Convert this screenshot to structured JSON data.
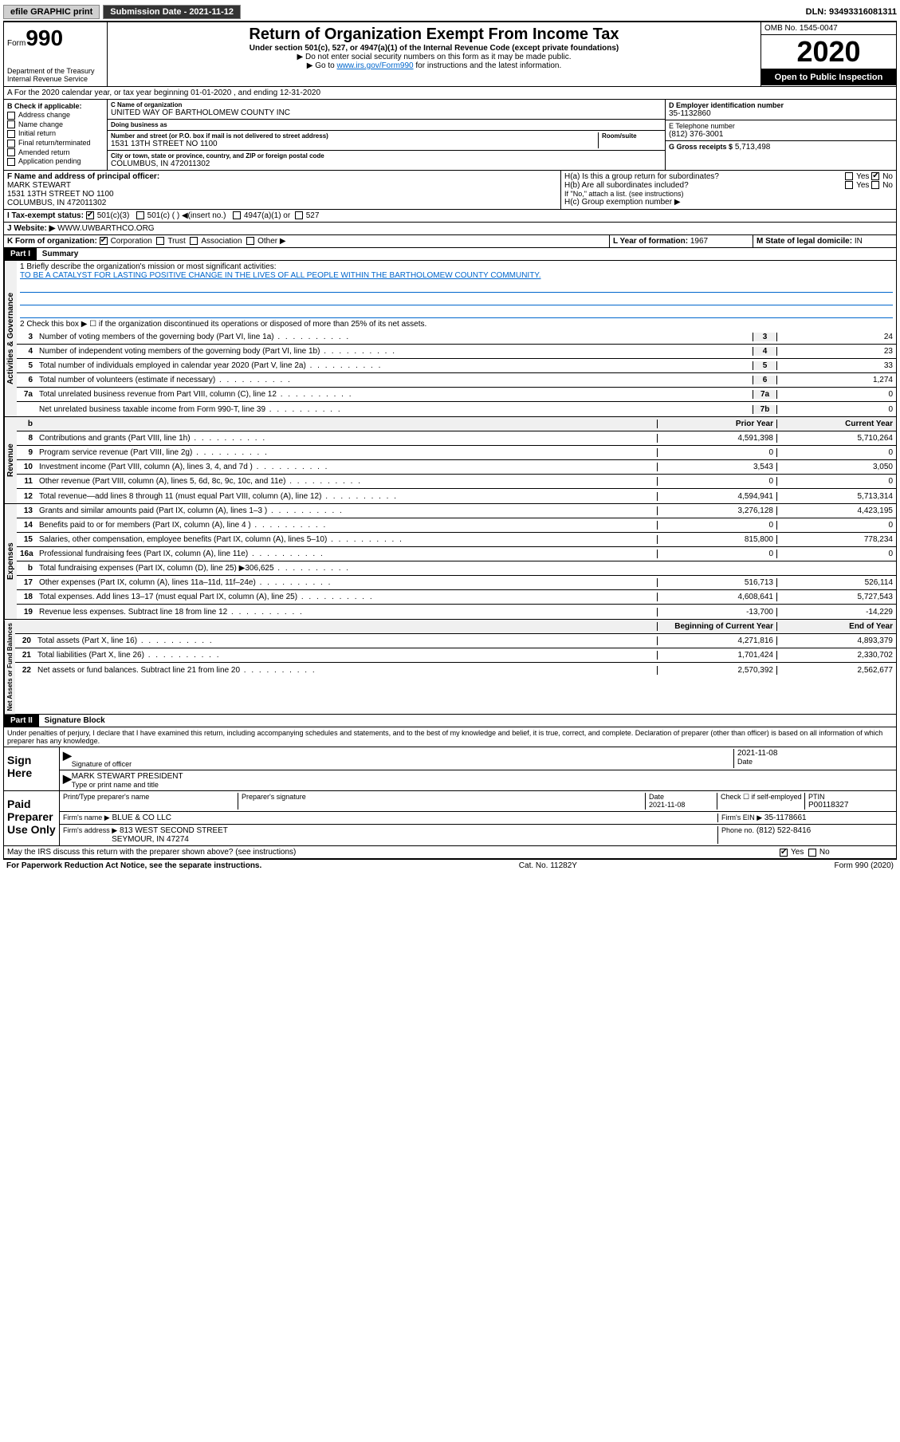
{
  "topbar": {
    "efile_label": "efile GRAPHIC print",
    "submission_label": "Submission Date - 2021-11-12",
    "dln_label": "DLN: 93493316081311"
  },
  "header": {
    "form_label": "Form",
    "form_num": "990",
    "dept": "Department of the Treasury",
    "irs": "Internal Revenue Service",
    "title": "Return of Organization Exempt From Income Tax",
    "subtitle": "Under section 501(c), 527, or 4947(a)(1) of the Internal Revenue Code (except private foundations)",
    "instr1": "▶ Do not enter social security numbers on this form as it may be made public.",
    "instr2_pre": "▶ Go to ",
    "instr2_link": "www.irs.gov/Form990",
    "instr2_post": " for instructions and the latest information.",
    "omb": "OMB No. 1545-0047",
    "year": "2020",
    "inspection": "Open to Public Inspection"
  },
  "row_a": "A For the 2020 calendar year, or tax year beginning 01-01-2020    , and ending 12-31-2020",
  "col_b": {
    "label": "B Check if applicable:",
    "opts": [
      "Address change",
      "Name change",
      "Initial return",
      "Final return/terminated",
      "Amended return",
      "Application pending"
    ]
  },
  "col_c": {
    "name_label": "C Name of organization",
    "name": "UNITED WAY OF BARTHOLOMEW COUNTY INC",
    "dba_label": "Doing business as",
    "dba": "",
    "street_label": "Number and street (or P.O. box if mail is not delivered to street address)",
    "room_label": "Room/suite",
    "street": "1531 13TH STREET NO 1100",
    "city_label": "City or town, state or province, country, and ZIP or foreign postal code",
    "city": "COLUMBUS, IN  472011302"
  },
  "col_d": {
    "ein_label": "D Employer identification number",
    "ein": "35-1132860",
    "phone_label": "E Telephone number",
    "phone": "(812) 376-3001",
    "receipts_label": "G Gross receipts $",
    "receipts": "5,713,498"
  },
  "row_f": {
    "label": "F Name and address of principal officer:",
    "name": "MARK STEWART",
    "addr1": "1531 13TH STREET NO 1100",
    "addr2": "COLUMBUS, IN  472011302"
  },
  "row_h": {
    "ha": "H(a)  Is this a group return for subordinates?",
    "hb": "H(b)  Are all subordinates included?",
    "hb_note": "If \"No,\" attach a list. (see instructions)",
    "hc": "H(c)  Group exemption number ▶"
  },
  "row_i": {
    "label": "I Tax-exempt status:",
    "opt1": "501(c)(3)",
    "opt2": "501(c) (  ) ◀(insert no.)",
    "opt3": "4947(a)(1) or",
    "opt4": "527"
  },
  "row_j": {
    "label": "J Website: ▶",
    "val": "WWW.UWBARTHCO.ORG"
  },
  "row_k": {
    "label": "K Form of organization:",
    "opts": [
      "Corporation",
      "Trust",
      "Association",
      "Other ▶"
    ],
    "l_label": "L Year of formation:",
    "l_val": "1967",
    "m_label": "M State of legal domicile:",
    "m_val": "IN"
  },
  "part1": {
    "header": "Part I",
    "title": "Summary",
    "line1_label": "1  Briefly describe the organization's mission or most significant activities:",
    "mission": "TO BE A CATALYST FOR LASTING POSITIVE CHANGE IN THE LIVES OF ALL PEOPLE WITHIN THE BARTHOLOMEW COUNTY COMMUNITY.",
    "line2": "2   Check this box ▶ ☐  if the organization discontinued its operations or disposed of more than 25% of its net assets.",
    "gov_label": "Activities & Governance",
    "gov_rows": [
      {
        "n": "3",
        "d": "Number of voting members of the governing body (Part VI, line 1a)",
        "bn": "3",
        "v": "24"
      },
      {
        "n": "4",
        "d": "Number of independent voting members of the governing body (Part VI, line 1b)",
        "bn": "4",
        "v": "23"
      },
      {
        "n": "5",
        "d": "Total number of individuals employed in calendar year 2020 (Part V, line 2a)",
        "bn": "5",
        "v": "33"
      },
      {
        "n": "6",
        "d": "Total number of volunteers (estimate if necessary)",
        "bn": "6",
        "v": "1,274"
      },
      {
        "n": "7a",
        "d": "Total unrelated business revenue from Part VIII, column (C), line 12",
        "bn": "7a",
        "v": "0"
      },
      {
        "n": "",
        "d": "Net unrelated business taxable income from Form 990-T, line 39",
        "bn": "7b",
        "v": "0"
      }
    ],
    "rev_label": "Revenue",
    "prior_hdr": "Prior Year",
    "current_hdr": "Current Year",
    "rev_rows": [
      {
        "n": "8",
        "d": "Contributions and grants (Part VIII, line 1h)",
        "p": "4,591,398",
        "c": "5,710,264"
      },
      {
        "n": "9",
        "d": "Program service revenue (Part VIII, line 2g)",
        "p": "0",
        "c": "0"
      },
      {
        "n": "10",
        "d": "Investment income (Part VIII, column (A), lines 3, 4, and 7d )",
        "p": "3,543",
        "c": "3,050"
      },
      {
        "n": "11",
        "d": "Other revenue (Part VIII, column (A), lines 5, 6d, 8c, 9c, 10c, and 11e)",
        "p": "0",
        "c": "0"
      },
      {
        "n": "12",
        "d": "Total revenue—add lines 8 through 11 (must equal Part VIII, column (A), line 12)",
        "p": "4,594,941",
        "c": "5,713,314"
      }
    ],
    "exp_label": "Expenses",
    "exp_rows": [
      {
        "n": "13",
        "d": "Grants and similar amounts paid (Part IX, column (A), lines 1–3 )",
        "p": "3,276,128",
        "c": "4,423,195"
      },
      {
        "n": "14",
        "d": "Benefits paid to or for members (Part IX, column (A), line 4 )",
        "p": "0",
        "c": "0"
      },
      {
        "n": "15",
        "d": "Salaries, other compensation, employee benefits (Part IX, column (A), lines 5–10)",
        "p": "815,800",
        "c": "778,234"
      },
      {
        "n": "16a",
        "d": "Professional fundraising fees (Part IX, column (A), line 11e)",
        "p": "0",
        "c": "0"
      },
      {
        "n": "b",
        "d": "Total fundraising expenses (Part IX, column (D), line 25) ▶306,625",
        "p": "",
        "c": ""
      },
      {
        "n": "17",
        "d": "Other expenses (Part IX, column (A), lines 11a–11d, 11f–24e)",
        "p": "516,713",
        "c": "526,114"
      },
      {
        "n": "18",
        "d": "Total expenses. Add lines 13–17 (must equal Part IX, column (A), line 25)",
        "p": "4,608,641",
        "c": "5,727,543"
      },
      {
        "n": "19",
        "d": "Revenue less expenses. Subtract line 18 from line 12",
        "p": "-13,700",
        "c": "-14,229"
      }
    ],
    "net_label": "Net Assets or Fund Balances",
    "begin_hdr": "Beginning of Current Year",
    "end_hdr": "End of Year",
    "net_rows": [
      {
        "n": "20",
        "d": "Total assets (Part X, line 16)",
        "p": "4,271,816",
        "c": "4,893,379"
      },
      {
        "n": "21",
        "d": "Total liabilities (Part X, line 26)",
        "p": "1,701,424",
        "c": "2,330,702"
      },
      {
        "n": "22",
        "d": "Net assets or fund balances. Subtract line 21 from line 20",
        "p": "2,570,392",
        "c": "2,562,677"
      }
    ]
  },
  "part2": {
    "header": "Part II",
    "title": "Signature Block",
    "perjury": "Under penalties of perjury, I declare that I have examined this return, including accompanying schedules and statements, and to the best of my knowledge and belief, it is true, correct, and complete. Declaration of preparer (other than officer) is based on all information of which preparer has any knowledge.",
    "sign_here": "Sign Here",
    "sig_officer": "Signature of officer",
    "sig_date": "2021-11-08",
    "date_label": "Date",
    "officer_name": "MARK STEWART PRESIDENT",
    "type_label": "Type or print name and title",
    "paid_prep": "Paid Preparer Use Only",
    "prep_name_label": "Print/Type preparer's name",
    "prep_sig_label": "Preparer's signature",
    "prep_date": "2021-11-08",
    "check_label": "Check ☐ if self-employed",
    "ptin_label": "PTIN",
    "ptin": "P00118327",
    "firm_name_label": "Firm's name    ▶",
    "firm_name": "BLUE & CO LLC",
    "firm_ein_label": "Firm's EIN ▶",
    "firm_ein": "35-1178661",
    "firm_addr_label": "Firm's address ▶",
    "firm_addr1": "813 WEST SECOND STREET",
    "firm_addr2": "SEYMOUR, IN  47274",
    "firm_phone_label": "Phone no.",
    "firm_phone": "(812) 522-8416",
    "discuss": "May the IRS discuss this return with the preparer shown above? (see instructions)",
    "yes": "Yes",
    "no": "No"
  },
  "footer": {
    "left": "For Paperwork Reduction Act Notice, see the separate instructions.",
    "center": "Cat. No. 11282Y",
    "right": "Form 990 (2020)"
  }
}
